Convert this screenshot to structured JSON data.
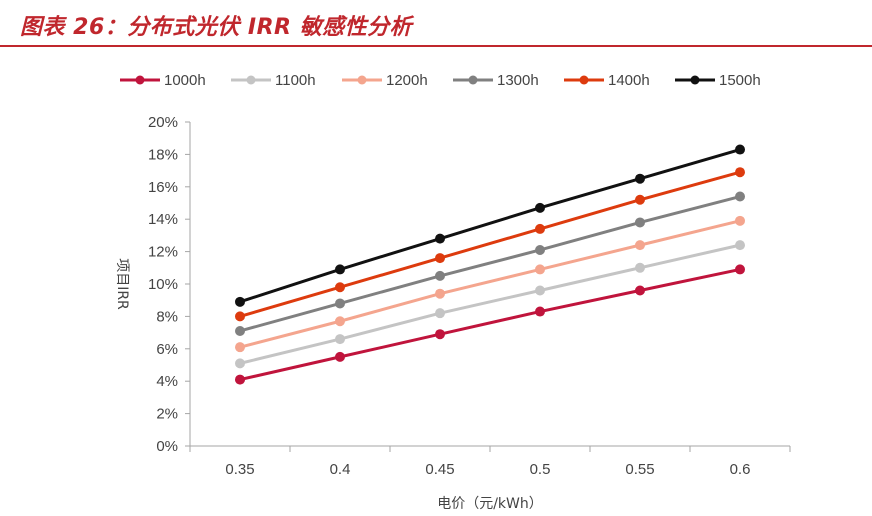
{
  "header": {
    "title": "图表 26：分布式光伏 IRR 敏感性分析"
  },
  "chart_data": {
    "type": "line",
    "xlabel": "电价（元/kWh）",
    "ylabel": "项目IRR",
    "x": [
      0.35,
      0.4,
      0.45,
      0.5,
      0.55,
      0.6
    ],
    "x_tick_labels": [
      "0.35",
      "0.4",
      "0.45",
      "0.5",
      "0.55",
      "0.6"
    ],
    "ylim": [
      0,
      0.2
    ],
    "y_ticks": [
      0,
      0.02,
      0.04,
      0.06,
      0.08,
      0.1,
      0.12,
      0.14,
      0.16,
      0.18,
      0.2
    ],
    "y_tick_labels": [
      "0%",
      "2%",
      "4%",
      "6%",
      "8%",
      "10%",
      "12%",
      "14%",
      "16%",
      "18%",
      "20%"
    ],
    "grid": false,
    "legend_position": "top",
    "series": [
      {
        "name": "1000h",
        "color": "#c0143c",
        "values": [
          0.041,
          0.055,
          0.069,
          0.083,
          0.096,
          0.109
        ]
      },
      {
        "name": "1100h",
        "color": "#c4c4c4",
        "values": [
          0.051,
          0.066,
          0.082,
          0.096,
          0.11,
          0.124
        ]
      },
      {
        "name": "1200h",
        "color": "#f4a58e",
        "values": [
          0.061,
          0.077,
          0.094,
          0.109,
          0.124,
          0.139
        ]
      },
      {
        "name": "1300h",
        "color": "#808080",
        "values": [
          0.071,
          0.088,
          0.105,
          0.121,
          0.138,
          0.154
        ]
      },
      {
        "name": "1400h",
        "color": "#dd3b0e",
        "values": [
          0.08,
          0.098,
          0.116,
          0.134,
          0.152,
          0.169
        ]
      },
      {
        "name": "1500h",
        "color": "#111111",
        "values": [
          0.089,
          0.109,
          0.128,
          0.147,
          0.165,
          0.183
        ]
      }
    ]
  }
}
